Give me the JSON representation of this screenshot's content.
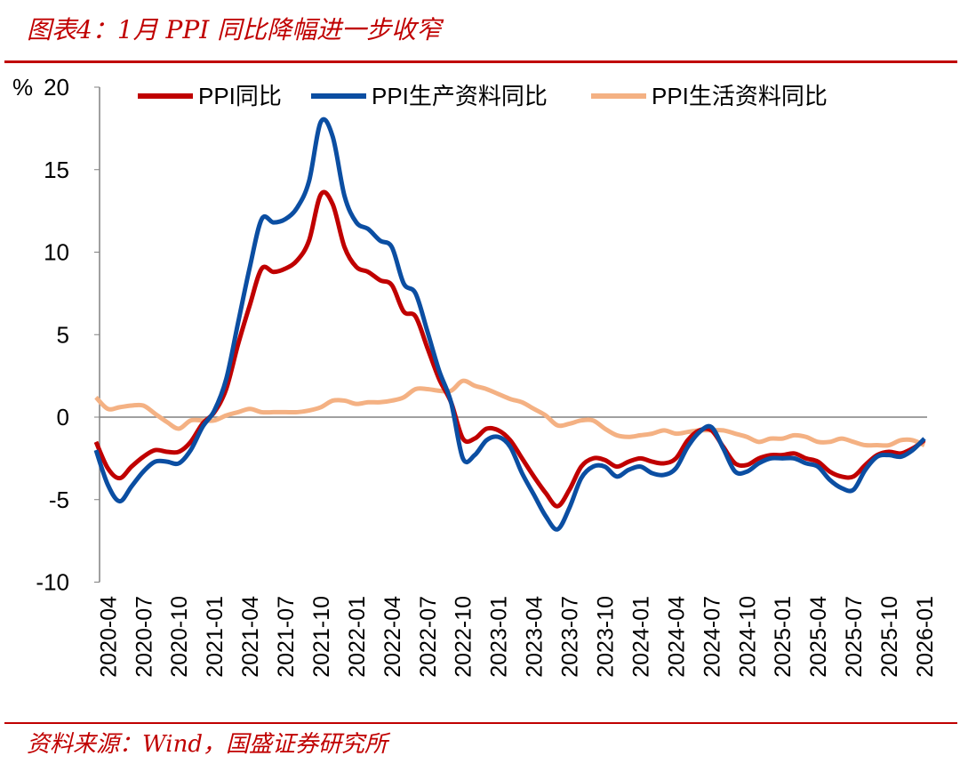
{
  "header": {
    "title": "图表4：1月 PPI 同比降幅进一步收窄"
  },
  "footer": {
    "source": "资料来源：Wind，国盛证券研究所"
  },
  "colors": {
    "brand": "#c00000",
    "ppi": "#c00000",
    "producer": "#0b4ea2",
    "consumer": "#f4b183",
    "zero_line": "#808080"
  },
  "chart_data": {
    "type": "line",
    "yunit": "%",
    "ylim": [
      -10,
      20
    ],
    "yticks": [
      -10,
      -5,
      0,
      5,
      10,
      15,
      20
    ],
    "grid": false,
    "legend_position": "top",
    "xtick_labels": [
      "2020-04",
      "2020-07",
      "2020-10",
      "2021-01",
      "2021-04",
      "2021-07",
      "2021-10",
      "2022-01",
      "2022-04",
      "2022-07",
      "2022-10",
      "2023-01",
      "2023-04",
      "2023-07",
      "2023-10",
      "2024-01",
      "2024-04",
      "2024-07",
      "2024-10",
      "2025-01",
      "2025-04",
      "2025-07",
      "2025-10",
      "2026-01"
    ],
    "x_start": "2020-03",
    "x_end": "2026-01",
    "series": [
      {
        "name": "PPI同比",
        "values": [
          -1.5,
          -3.1,
          -3.7,
          -3.0,
          -2.4,
          -2.0,
          -2.1,
          -2.1,
          -1.5,
          -0.4,
          0.3,
          1.7,
          4.4,
          6.8,
          9.0,
          8.8,
          9.0,
          9.5,
          10.7,
          13.5,
          12.9,
          10.3,
          9.1,
          8.8,
          8.3,
          8.0,
          6.4,
          6.1,
          4.2,
          2.3,
          0.9,
          -1.3,
          -1.3,
          -0.7,
          -0.8,
          -1.4,
          -2.5,
          -3.6,
          -4.6,
          -5.4,
          -4.4,
          -3.0,
          -2.5,
          -2.6,
          -3.0,
          -2.7,
          -2.5,
          -2.7,
          -2.8,
          -2.5,
          -1.4,
          -0.8,
          -0.8,
          -1.8,
          -2.8,
          -2.9,
          -2.5,
          -2.3,
          -2.3,
          -2.2,
          -2.5,
          -2.7,
          -3.3,
          -3.6,
          -3.6,
          -2.9,
          -2.3,
          -2.1,
          -2.2,
          -1.9,
          -1.4
        ]
      },
      {
        "name": "PPI生产资料同比",
        "values": [
          -2.0,
          -4.1,
          -5.1,
          -4.2,
          -3.3,
          -2.7,
          -2.7,
          -2.8,
          -2.0,
          -0.6,
          0.4,
          2.3,
          5.7,
          9.1,
          12.0,
          11.8,
          12.0,
          12.7,
          14.3,
          17.9,
          17.0,
          13.4,
          11.8,
          11.4,
          10.7,
          10.3,
          8.1,
          7.5,
          5.2,
          2.8,
          0.9,
          -2.5,
          -2.3,
          -1.4,
          -1.2,
          -1.8,
          -3.4,
          -4.7,
          -6.0,
          -6.8,
          -5.5,
          -3.7,
          -3.0,
          -3.0,
          -3.6,
          -3.2,
          -3.0,
          -3.4,
          -3.5,
          -3.1,
          -1.8,
          -0.9,
          -0.6,
          -1.9,
          -3.3,
          -3.3,
          -2.8,
          -2.5,
          -2.5,
          -2.5,
          -2.8,
          -3.0,
          -3.8,
          -4.3,
          -4.4,
          -3.2,
          -2.4,
          -2.3,
          -2.4,
          -2.0,
          -1.3
        ]
      },
      {
        "name": "PPI生活资料同比",
        "values": [
          1.2,
          0.5,
          0.6,
          0.7,
          0.7,
          0.2,
          -0.3,
          -0.7,
          -0.2,
          -0.2,
          -0.2,
          0.1,
          0.3,
          0.5,
          0.3,
          0.3,
          0.3,
          0.3,
          0.4,
          0.6,
          1.0,
          1.0,
          0.8,
          0.9,
          0.9,
          1.0,
          1.2,
          1.7,
          1.7,
          1.6,
          1.6,
          2.2,
          1.9,
          1.7,
          1.4,
          1.1,
          0.9,
          0.5,
          0.1,
          -0.5,
          -0.4,
          -0.2,
          -0.2,
          -0.7,
          -1.1,
          -1.2,
          -1.1,
          -1.0,
          -0.8,
          -1.0,
          -0.9,
          -0.8,
          -0.8,
          -0.8,
          -1.0,
          -1.2,
          -1.5,
          -1.3,
          -1.3,
          -1.1,
          -1.2,
          -1.5,
          -1.5,
          -1.3,
          -1.5,
          -1.7,
          -1.7,
          -1.7,
          -1.4,
          -1.4,
          -1.7
        ]
      }
    ]
  }
}
